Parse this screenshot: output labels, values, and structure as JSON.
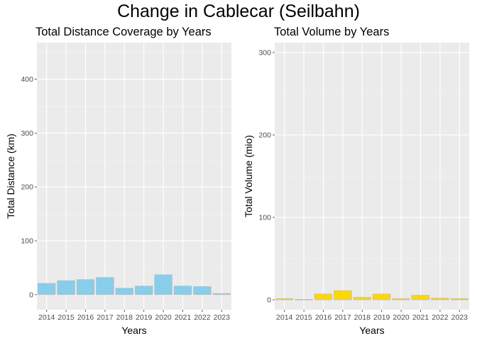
{
  "suptitle": "Change in Cablecar (Seilbahn)",
  "chart_data": [
    {
      "type": "bar",
      "title": "Total Distance Coverage by Years",
      "xlabel": "Years",
      "ylabel": "Total Distance (km)",
      "categories": [
        "2014",
        "2015",
        "2016",
        "2017",
        "2018",
        "2019",
        "2020",
        "2021",
        "2022",
        "2023"
      ],
      "values": [
        21,
        26,
        28,
        32,
        12,
        16,
        37,
        16,
        15,
        2
      ],
      "ylim": [
        -28,
        468
      ],
      "yticks": [
        0,
        100,
        200,
        300,
        400
      ],
      "bar_color": "#87CEEB",
      "bar_border": "#bdbdbd",
      "grid": true
    },
    {
      "type": "bar",
      "title": "Total Volume by Years",
      "xlabel": "Years",
      "ylabel": "Total Volume (mio)",
      "categories": [
        "2014",
        "2015",
        "2016",
        "2017",
        "2018",
        "2019",
        "2020",
        "2021",
        "2022",
        "2023"
      ],
      "values": [
        1.5,
        0.5,
        7,
        11,
        3,
        7,
        1.5,
        5.5,
        2,
        1.5
      ],
      "ylim": [
        -12,
        312
      ],
      "yticks": [
        0,
        100,
        200,
        300
      ],
      "bar_color": "#FFD700",
      "bar_border": "#bdbdbd",
      "grid": true
    }
  ]
}
